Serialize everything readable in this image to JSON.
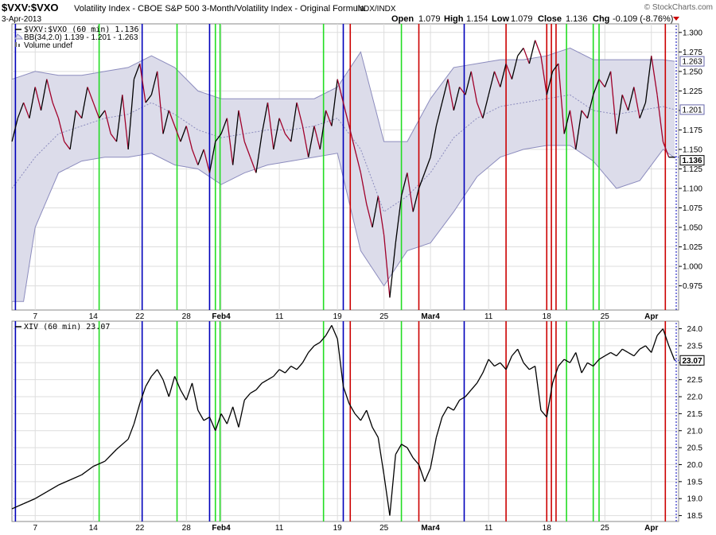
{
  "header": {
    "symbol": "$VXV:$VXO",
    "description": "Volatility Index - CBOE S&P 500 3-Month/Volatility Index - Original Formula",
    "exchange": "INDX/INDX",
    "date": "3-Apr-2013",
    "watermark": "© StockCharts.com",
    "open_label": "Open",
    "open": "1.079",
    "high_label": "High",
    "high": "1.154",
    "low_label": "Low",
    "low": "1.079",
    "close_label": "Close",
    "close": "1.136",
    "chg_label": "Chg",
    "chg": "-0.109 (-8.76%)"
  },
  "colors": {
    "price_up": "#000000",
    "price_down": "#a0002a",
    "band_fill": "#dcdcea",
    "band_line": "#8c8cbe",
    "grid": "#dddddd",
    "green_line": "#22dd22",
    "blue_line": "#0000bb",
    "red_line": "#cc0000",
    "border": "#888888"
  },
  "chart_data": [
    {
      "type": "line",
      "panel": "upper",
      "legend": [
        {
          "icon": "line-legend-icon",
          "text": "$VXV:$VXO (60 min) 1.136"
        },
        {
          "icon": "band-legend-icon",
          "text": "BB(34,2.0) 1.139 - 1.201 - 1.263"
        },
        {
          "icon": "volume-legend-icon",
          "text": "Volume undef"
        }
      ],
      "ylim": [
        0.945,
        1.31
      ],
      "yticks": [
        "1.300",
        "1.275",
        "1.250",
        "1.225",
        "1.200",
        "1.175",
        "1.150",
        "1.125",
        "1.100",
        "1.075",
        "1.050",
        "1.025",
        "1.000",
        "0.975"
      ],
      "value_tags": [
        "1.263",
        "1.201",
        "1.136"
      ],
      "x_labels": [
        {
          "t": 2,
          "label": "7"
        },
        {
          "t": 7,
          "label": "14"
        },
        {
          "t": 11,
          "label": "22"
        },
        {
          "t": 15,
          "label": "28"
        },
        {
          "t": 18,
          "label": "Feb4"
        },
        {
          "t": 23,
          "label": "11"
        },
        {
          "t": 28,
          "label": "19"
        },
        {
          "t": 32,
          "label": "25"
        },
        {
          "t": 36,
          "label": "Mar4"
        },
        {
          "t": 41,
          "label": "11"
        },
        {
          "t": 46,
          "label": "18"
        },
        {
          "t": 51,
          "label": "25"
        },
        {
          "t": 55,
          "label": "Apr"
        }
      ],
      "series": [
        {
          "role": "price",
          "x": [
            0,
            0.5,
            1,
            1.5,
            2,
            2.5,
            3,
            3.5,
            4,
            4.5,
            5,
            5.5,
            6,
            6.5,
            7,
            7.5,
            8,
            8.5,
            9,
            9.5,
            10,
            10.5,
            11,
            11.5,
            12,
            12.5,
            13,
            13.5,
            14,
            14.5,
            15,
            15.5,
            16,
            16.5,
            17,
            17.5,
            18,
            18.5,
            19,
            19.5,
            20,
            20.5,
            21,
            21.5,
            22,
            22.5,
            23,
            23.5,
            24,
            24.5,
            25,
            25.5,
            26,
            26.5,
            27,
            27.5,
            28,
            28.5,
            29,
            29.5,
            30,
            30.5,
            31,
            31.5,
            32,
            32.5,
            33,
            33.5,
            34,
            34.5,
            35,
            35.5,
            36,
            36.5,
            37,
            37.5,
            38,
            38.5,
            39,
            39.5,
            40,
            40.5,
            41,
            41.5,
            42,
            42.5,
            43,
            43.5,
            44,
            44.5,
            45,
            45.5,
            46,
            46.5,
            47,
            47.5,
            48,
            48.5,
            49,
            49.5,
            50,
            50.5,
            51,
            51.5,
            52,
            52.5,
            53,
            53.5,
            54,
            54.5,
            55,
            55.5,
            56,
            56.5,
            57
          ],
          "y": [
            1.16,
            1.19,
            1.21,
            1.19,
            1.23,
            1.2,
            1.24,
            1.21,
            1.19,
            1.16,
            1.15,
            1.2,
            1.19,
            1.23,
            1.21,
            1.19,
            1.2,
            1.17,
            1.16,
            1.22,
            1.15,
            1.24,
            1.26,
            1.21,
            1.22,
            1.25,
            1.17,
            1.2,
            1.18,
            1.16,
            1.18,
            1.15,
            1.13,
            1.15,
            1.12,
            1.16,
            1.17,
            1.19,
            1.13,
            1.2,
            1.16,
            1.14,
            1.12,
            1.17,
            1.21,
            1.15,
            1.19,
            1.17,
            1.16,
            1.21,
            1.18,
            1.14,
            1.18,
            1.15,
            1.2,
            1.18,
            1.24,
            1.21,
            1.18,
            1.15,
            1.12,
            1.08,
            1.05,
            1.09,
            1.04,
            0.96,
            1.03,
            1.09,
            1.12,
            1.07,
            1.1,
            1.12,
            1.14,
            1.18,
            1.21,
            1.24,
            1.2,
            1.23,
            1.22,
            1.25,
            1.21,
            1.19,
            1.22,
            1.25,
            1.23,
            1.26,
            1.24,
            1.27,
            1.28,
            1.26,
            1.29,
            1.27,
            1.22,
            1.25,
            1.26,
            1.17,
            1.2,
            1.15,
            1.2,
            1.19,
            1.22,
            1.24,
            1.23,
            1.25,
            1.17,
            1.22,
            1.2,
            1.23,
            1.19,
            1.21,
            1.27,
            1.22,
            1.16,
            1.14,
            1.14
          ]
        },
        {
          "role": "bollinger-upper",
          "x": [
            0,
            2,
            4,
            6,
            8,
            10,
            12,
            14,
            16,
            18,
            20,
            22,
            24,
            26,
            28,
            30,
            32,
            34,
            36,
            38,
            40,
            42,
            44,
            46,
            48,
            50,
            52,
            54,
            56,
            57
          ],
          "y": [
            1.24,
            1.25,
            1.245,
            1.245,
            1.25,
            1.255,
            1.27,
            1.255,
            1.225,
            1.215,
            1.215,
            1.215,
            1.215,
            1.215,
            1.23,
            1.275,
            1.16,
            1.16,
            1.215,
            1.255,
            1.26,
            1.265,
            1.265,
            1.27,
            1.28,
            1.265,
            1.265,
            1.265,
            1.265,
            1.263
          ]
        },
        {
          "role": "bollinger-middle",
          "x": [
            0,
            2,
            4,
            6,
            8,
            10,
            12,
            14,
            16,
            18,
            20,
            22,
            24,
            26,
            28,
            30,
            32,
            34,
            36,
            38,
            40,
            42,
            44,
            46,
            48,
            50,
            52,
            54,
            56,
            57
          ],
          "y": [
            1.1,
            1.14,
            1.17,
            1.18,
            1.19,
            1.195,
            1.21,
            1.195,
            1.175,
            1.165,
            1.17,
            1.175,
            1.175,
            1.18,
            1.19,
            1.15,
            1.07,
            1.09,
            1.12,
            1.165,
            1.19,
            1.205,
            1.21,
            1.215,
            1.22,
            1.2,
            1.195,
            1.2,
            1.205,
            1.201
          ]
        },
        {
          "role": "bollinger-lower",
          "x": [
            0,
            1,
            2,
            4,
            6,
            8,
            10,
            12,
            14,
            16,
            18,
            20,
            22,
            24,
            26,
            28,
            30,
            32,
            34,
            36,
            38,
            40,
            42,
            44,
            46,
            48,
            50,
            52,
            54,
            56,
            57
          ],
          "y": [
            0.955,
            0.955,
            1.05,
            1.12,
            1.135,
            1.14,
            1.14,
            1.145,
            1.13,
            1.125,
            1.105,
            1.12,
            1.13,
            1.135,
            1.14,
            1.145,
            1.02,
            0.975,
            1.02,
            1.03,
            1.07,
            1.115,
            1.14,
            1.15,
            1.155,
            1.155,
            1.135,
            1.1,
            1.11,
            1.15,
            1.139
          ]
        }
      ]
    },
    {
      "type": "line",
      "panel": "lower",
      "legend": [
        {
          "icon": "line-legend-icon",
          "text": "XIV (60 min) 23.07"
        }
      ],
      "ylim": [
        18.35,
        24.2
      ],
      "yticks": [
        "24.0",
        "23.5",
        "23.0",
        "22.5",
        "22.0",
        "21.5",
        "21.0",
        "20.5",
        "20.0",
        "19.5",
        "19.0",
        "18.5"
      ],
      "value_tags": [
        "23.07"
      ],
      "x_labels": [
        {
          "t": 2,
          "label": "7"
        },
        {
          "t": 7,
          "label": "14"
        },
        {
          "t": 11,
          "label": "22"
        },
        {
          "t": 15,
          "label": "28"
        },
        {
          "t": 18,
          "label": "Feb4"
        },
        {
          "t": 23,
          "label": "11"
        },
        {
          "t": 28,
          "label": "19"
        },
        {
          "t": 32,
          "label": "25"
        },
        {
          "t": 36,
          "label": "Mar4"
        },
        {
          "t": 41,
          "label": "11"
        },
        {
          "t": 46,
          "label": "18"
        },
        {
          "t": 51,
          "label": "25"
        },
        {
          "t": 55,
          "label": "Apr"
        }
      ],
      "series": [
        {
          "role": "price",
          "x": [
            0,
            1,
            2,
            3,
            4,
            5,
            6,
            7,
            8,
            9,
            10,
            10.5,
            11,
            11.5,
            12,
            12.5,
            13,
            13.5,
            14,
            14.5,
            15,
            15.5,
            16,
            16.5,
            17,
            17.5,
            18,
            18.5,
            19,
            19.5,
            20,
            20.5,
            21,
            21.5,
            22,
            22.5,
            23,
            23.5,
            24,
            24.5,
            25,
            25.5,
            26,
            26.5,
            27,
            27.5,
            28,
            28.5,
            29,
            29.5,
            30,
            30.5,
            31,
            31.5,
            32,
            32.5,
            33,
            33.5,
            34,
            34.5,
            35,
            35.5,
            36,
            36.5,
            37,
            37.5,
            38,
            38.5,
            39,
            39.5,
            40,
            40.5,
            41,
            41.5,
            42,
            42.5,
            43,
            43.5,
            44,
            44.5,
            45,
            45.5,
            46,
            46.5,
            47,
            47.5,
            48,
            48.5,
            49,
            49.5,
            50,
            50.5,
            51,
            51.5,
            52,
            52.5,
            53,
            53.5,
            54,
            54.5,
            55,
            55.5,
            56,
            56.5,
            57
          ],
          "y": [
            18.7,
            18.85,
            19.0,
            19.2,
            19.4,
            19.55,
            19.7,
            19.95,
            20.1,
            20.45,
            20.75,
            21.2,
            21.8,
            22.3,
            22.6,
            22.8,
            22.5,
            22.0,
            22.6,
            22.2,
            21.9,
            22.4,
            21.6,
            21.3,
            21.4,
            21.0,
            21.5,
            21.2,
            21.7,
            21.1,
            21.9,
            22.1,
            22.2,
            22.4,
            22.5,
            22.6,
            22.8,
            22.7,
            22.9,
            22.8,
            23.0,
            23.3,
            23.5,
            23.6,
            23.8,
            24.1,
            23.7,
            22.3,
            21.8,
            21.5,
            21.3,
            21.6,
            21.1,
            20.8,
            19.7,
            18.5,
            20.3,
            20.6,
            20.5,
            20.2,
            20.0,
            19.5,
            19.9,
            20.8,
            21.4,
            21.7,
            21.6,
            21.9,
            22.0,
            22.2,
            22.4,
            22.7,
            23.1,
            22.9,
            23.0,
            22.8,
            23.2,
            23.4,
            23.0,
            22.8,
            22.9,
            21.6,
            21.4,
            22.4,
            22.9,
            23.1,
            23.0,
            23.3,
            22.7,
            23.0,
            22.9,
            23.1,
            23.2,
            23.3,
            23.2,
            23.4,
            23.3,
            23.2,
            23.4,
            23.5,
            23.3,
            23.8,
            24.0,
            23.5,
            23.07
          ]
        }
      ]
    }
  ],
  "vertical_lines": [
    {
      "t": 0.3,
      "color": "blue"
    },
    {
      "t": 7.5,
      "color": "green"
    },
    {
      "t": 11.2,
      "color": "blue"
    },
    {
      "t": 14.2,
      "color": "green"
    },
    {
      "t": 17.0,
      "color": "blue"
    },
    {
      "t": 17.5,
      "color": "green"
    },
    {
      "t": 17.9,
      "color": "green"
    },
    {
      "t": 26.8,
      "color": "green"
    },
    {
      "t": 28.5,
      "color": "blue"
    },
    {
      "t": 29.1,
      "color": "red"
    },
    {
      "t": 33.5,
      "color": "green"
    },
    {
      "t": 35.0,
      "color": "red"
    },
    {
      "t": 38.9,
      "color": "blue"
    },
    {
      "t": 42.5,
      "color": "red"
    },
    {
      "t": 46.0,
      "color": "red"
    },
    {
      "t": 46.4,
      "color": "red"
    },
    {
      "t": 46.8,
      "color": "red"
    },
    {
      "t": 47.7,
      "color": "green"
    },
    {
      "t": 50.0,
      "color": "green"
    },
    {
      "t": 50.5,
      "color": "green"
    },
    {
      "t": 56.2,
      "color": "red"
    }
  ]
}
